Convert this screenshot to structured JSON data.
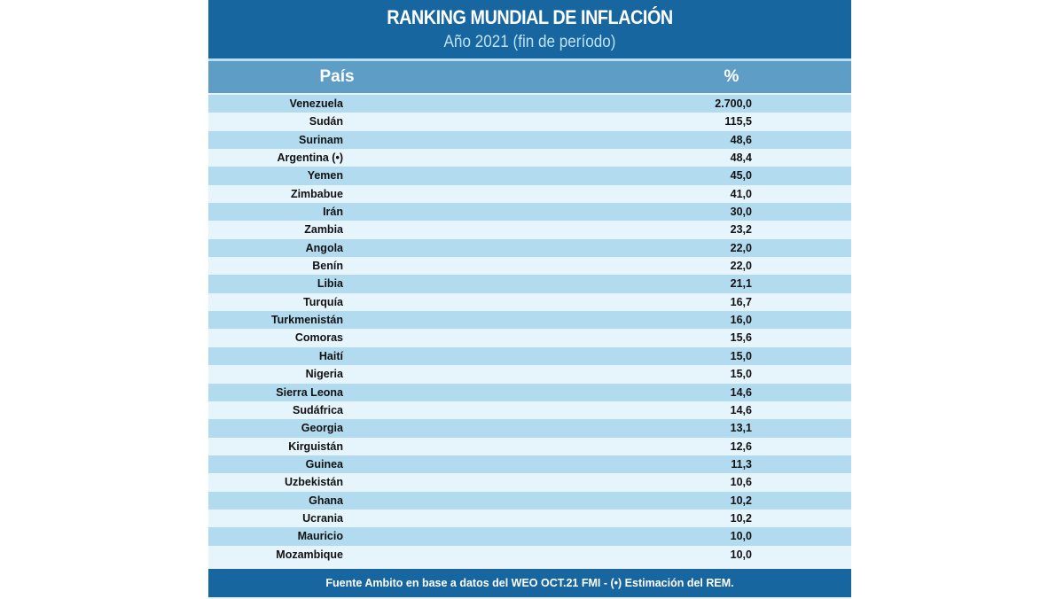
{
  "header": {
    "title": "RANKING MUNDIAL DE INFLACIÓN",
    "subtitle": "Año 2021 (fin de período)"
  },
  "colors": {
    "header": "#17669f",
    "column_header": "#5d9dc6",
    "row_odd": "#b3dbef",
    "row_even": "#e6f4fb"
  },
  "chart_data": {
    "type": "table",
    "title": "RANKING MUNDIAL DE INFLACIÓN",
    "subtitle": "Año 2021 (fin de período)",
    "columns": [
      "País",
      "%"
    ],
    "rows": [
      [
        "Venezuela",
        "2.700,0"
      ],
      [
        "Sudán",
        "115,5"
      ],
      [
        "Surinam",
        "48,6"
      ],
      [
        "Argentina (•)",
        "48,4"
      ],
      [
        "Yemen",
        "45,0"
      ],
      [
        "Zimbabue",
        "41,0"
      ],
      [
        "Irán",
        "30,0"
      ],
      [
        "Zambia",
        "23,2"
      ],
      [
        "Angola",
        "22,0"
      ],
      [
        "Benín",
        "22,0"
      ],
      [
        "Libia",
        "21,1"
      ],
      [
        "Turquía",
        "16,7"
      ],
      [
        "Turkmenistán",
        "16,0"
      ],
      [
        "Comoras",
        "15,6"
      ],
      [
        "Haití",
        "15,0"
      ],
      [
        "Nigeria",
        "15,0"
      ],
      [
        "Sierra Leona",
        "14,6"
      ],
      [
        "Sudáfrica",
        "14,6"
      ],
      [
        "Georgia",
        "13,1"
      ],
      [
        "Kirguistán",
        "12,6"
      ],
      [
        "Guinea",
        "11,3"
      ],
      [
        "Uzbekistán",
        "10,6"
      ],
      [
        "Ghana",
        "10,2"
      ],
      [
        "Ucrania",
        "10,2"
      ],
      [
        "Mauricio",
        "10,0"
      ],
      [
        "Mozambique",
        "10,0"
      ]
    ],
    "source": "Fuente Ambito en base a datos del WEO OCT.21 FMI - (•) Estimación del REM."
  }
}
